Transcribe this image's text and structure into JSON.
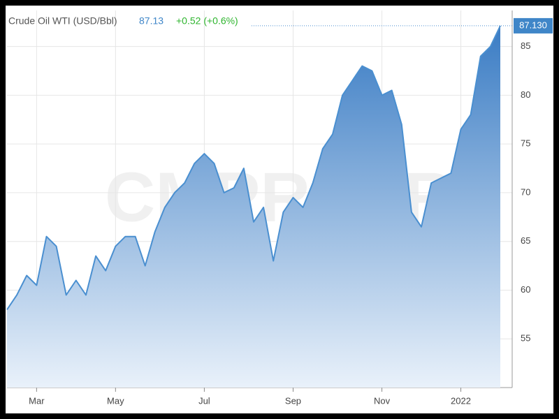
{
  "chart_data": {
    "type": "area",
    "title": "Crude Oil WTI (USD/Bbl)",
    "last_price": "87.13",
    "change": "+0.52 (+0.6%)",
    "price_label": "87.130",
    "watermark": "CMPRO.IR",
    "color": "#4a8fd0",
    "categories": [
      null,
      null,
      null,
      "Mar",
      null,
      null,
      null,
      null,
      null,
      null,
      null,
      "May",
      null,
      null,
      null,
      null,
      null,
      null,
      null,
      null,
      "Jul",
      null,
      null,
      null,
      null,
      null,
      null,
      null,
      null,
      "Sep",
      null,
      null,
      null,
      null,
      null,
      null,
      null,
      null,
      "Nov",
      null,
      null,
      null,
      null,
      null,
      null,
      null,
      "2022",
      null,
      null,
      null,
      null
    ],
    "values": [
      58,
      59.5,
      61.5,
      60.5,
      65.5,
      64.5,
      59.5,
      61,
      59.5,
      63.5,
      62,
      64.5,
      65.5,
      65.5,
      62.5,
      66,
      68.5,
      70,
      71,
      73,
      74,
      73,
      70,
      70.5,
      72.5,
      67,
      68.5,
      63,
      68,
      69.5,
      68.5,
      71,
      74.5,
      76,
      80,
      81.5,
      83,
      82.5,
      80,
      80.5,
      77,
      68,
      66.5,
      71,
      71.5,
      72,
      76.5,
      78,
      84,
      85,
      87.13
    ],
    "ylim": [
      50,
      88.7
    ],
    "yticks": [
      55,
      60,
      65,
      70,
      75,
      80,
      85
    ],
    "grid": true
  }
}
